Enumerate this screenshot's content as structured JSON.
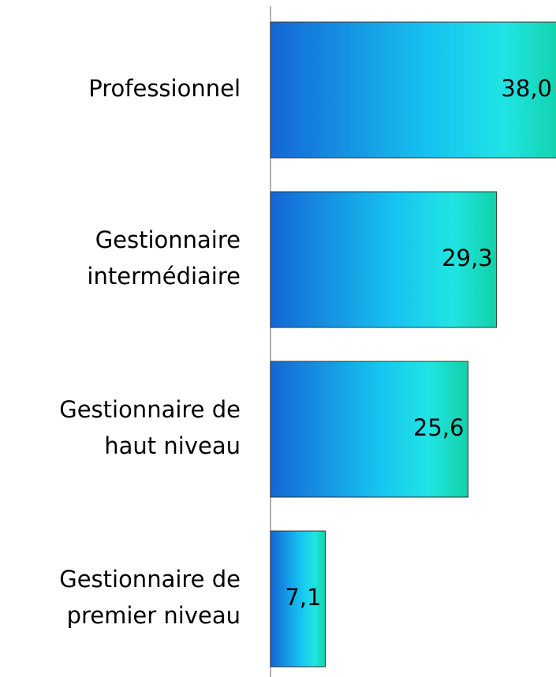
{
  "chart_data": {
    "type": "hbar",
    "categories": [
      "Professionnel",
      "Gestionnaire\nintermédiaire",
      "Gestionnaire de\nhaut niveau",
      "Gestionnaire de\npremier niveau"
    ],
    "values": [
      38.0,
      29.3,
      25.6,
      7.1
    ],
    "value_labels": [
      "38,0",
      "29,3",
      "25,6",
      "7,1"
    ],
    "xlim": [
      0,
      37
    ]
  }
}
